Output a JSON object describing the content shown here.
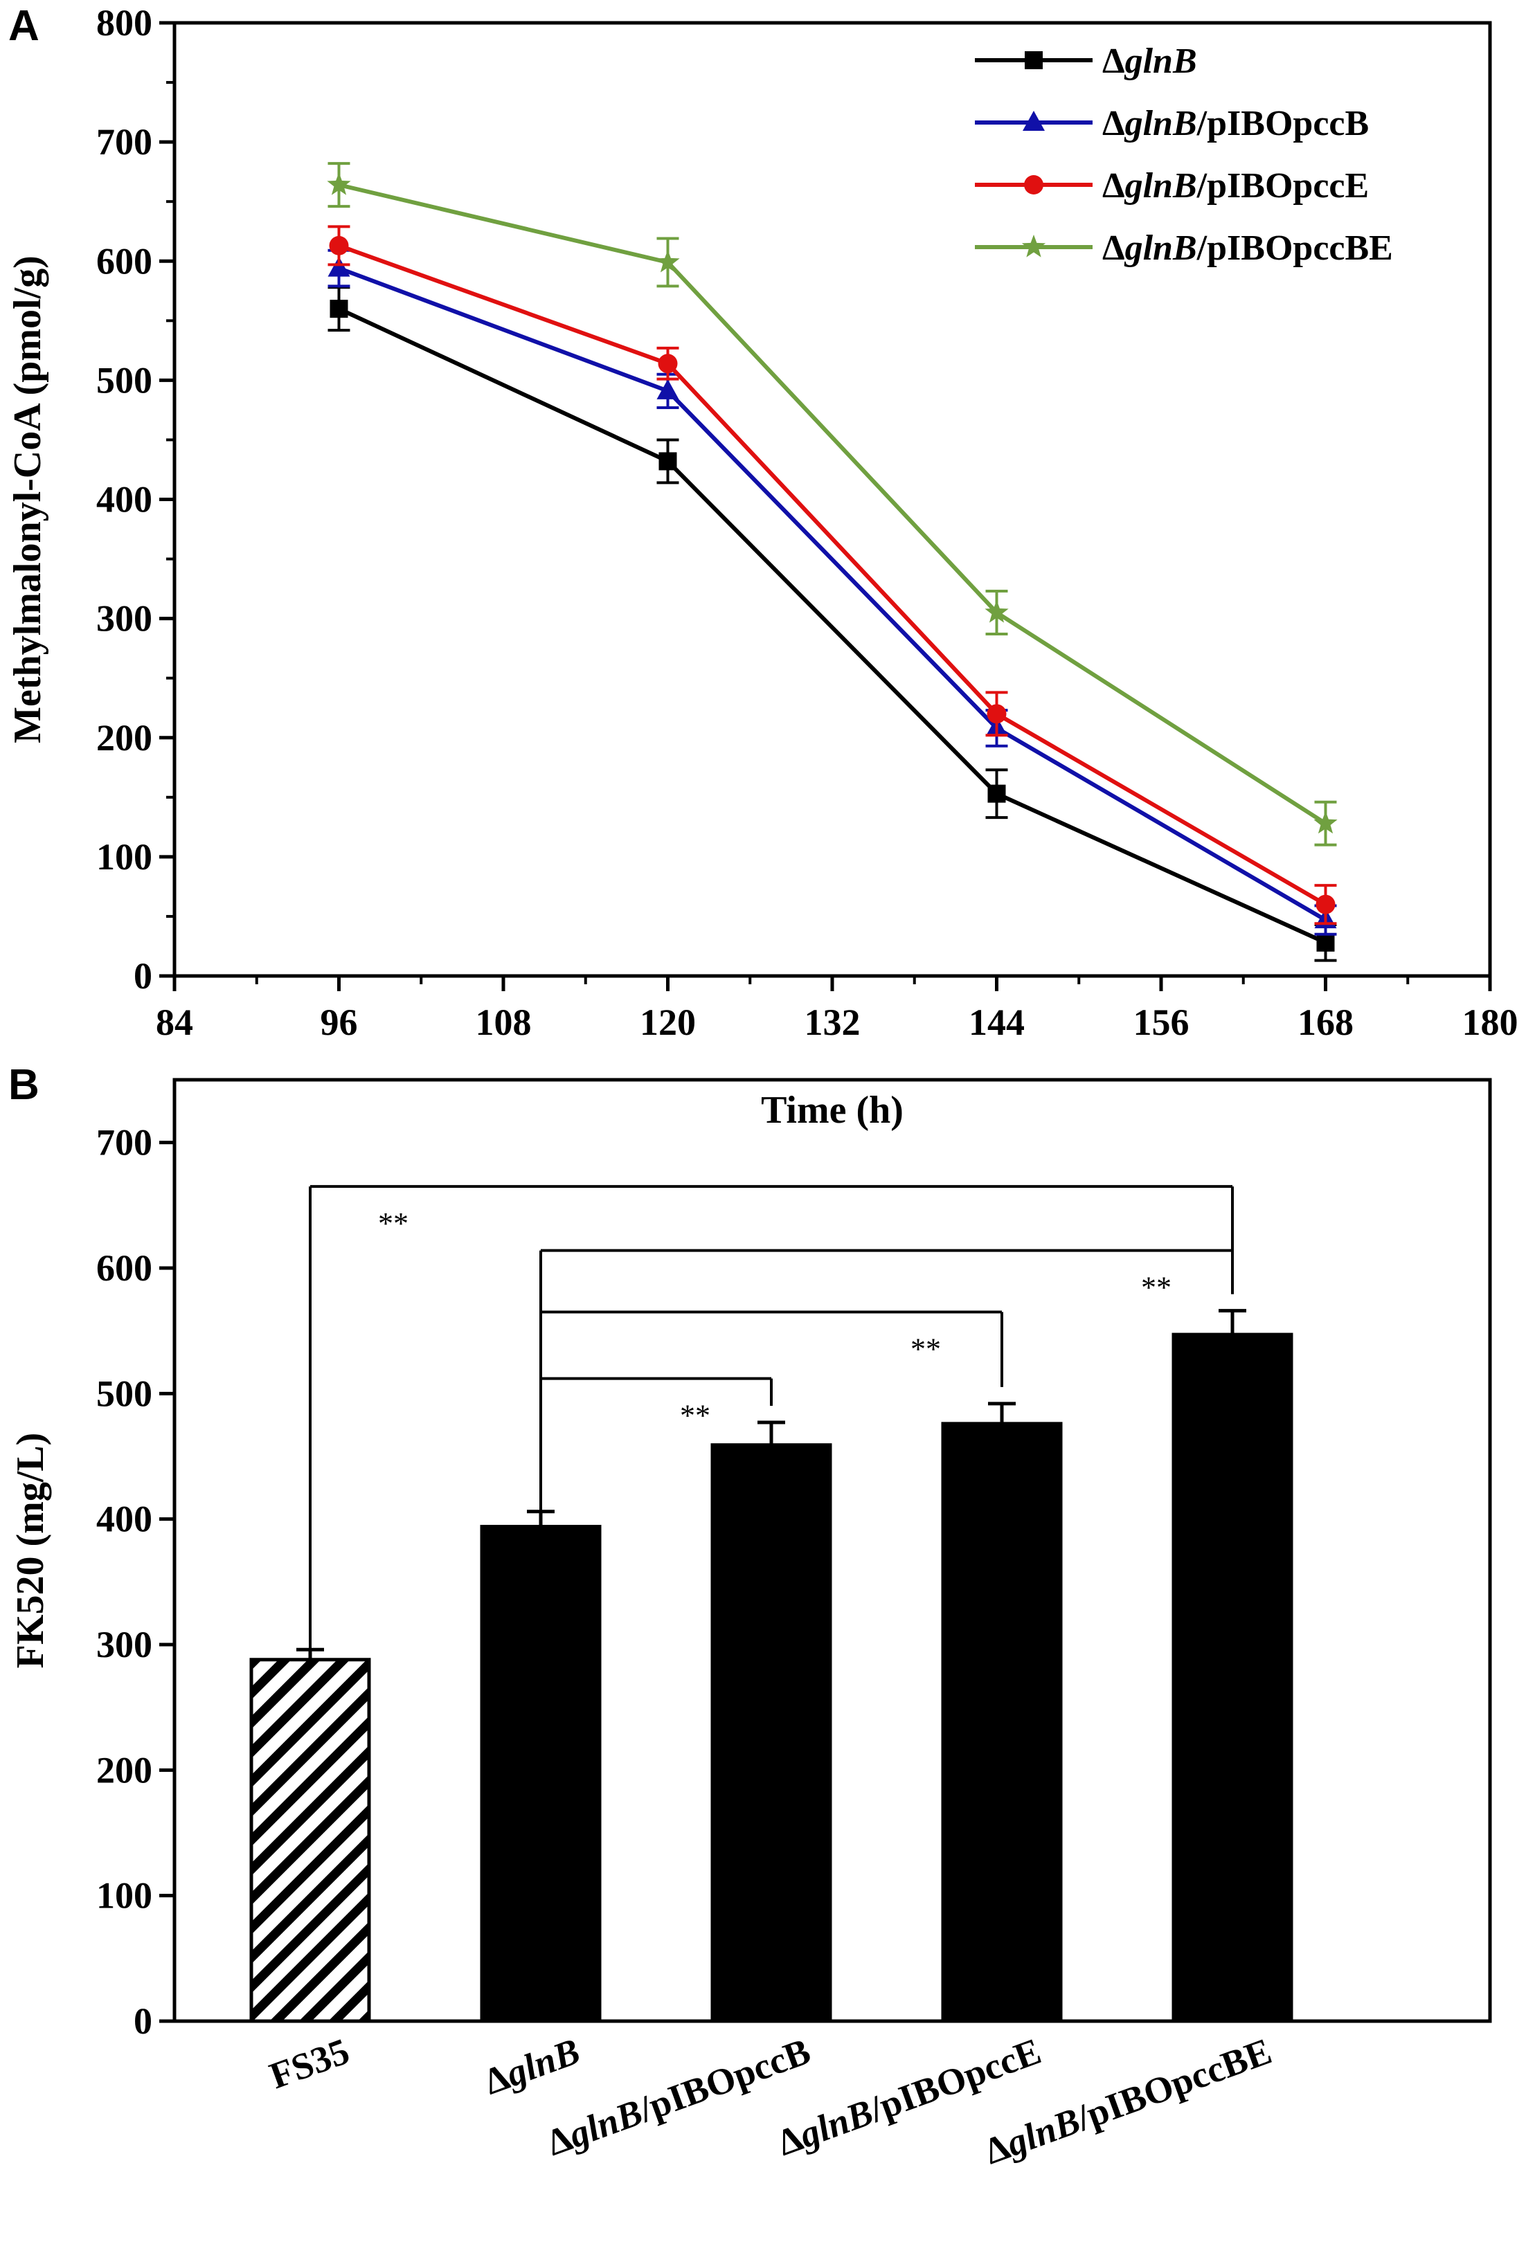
{
  "chart_data": [
    {
      "panel": "A",
      "type": "line",
      "xlabel": "Time (h)",
      "ylabel": "Methylmalonyl-CoA (pmol/g)",
      "xlim": [
        84,
        180
      ],
      "ylim": [
        0,
        800
      ],
      "xticks": [
        84,
        96,
        108,
        120,
        132,
        144,
        156,
        168,
        180
      ],
      "yticks": [
        0,
        100,
        200,
        300,
        400,
        500,
        600,
        700,
        800
      ],
      "x": [
        96,
        120,
        144,
        168
      ],
      "legend_position": "top-right",
      "series": [
        {
          "name": "ΔglnB",
          "name_parts": [
            "Δ",
            "glnB",
            ""
          ],
          "marker": "square",
          "color": "#000000",
          "values": [
            560,
            432,
            153,
            28
          ],
          "errors": [
            18,
            18,
            20,
            15
          ]
        },
        {
          "name": "ΔglnB/pIBOpccB",
          "name_parts": [
            "Δ",
            "glnB",
            "/pIBOpccB"
          ],
          "marker": "triangle",
          "color": "#1010a8",
          "values": [
            594,
            491,
            208,
            47
          ],
          "errors": [
            15,
            14,
            15,
            12
          ]
        },
        {
          "name": "ΔglnB/pIBOpccE",
          "name_parts": [
            "Δ",
            "glnB",
            "/pIBOpccE"
          ],
          "marker": "circle",
          "color": "#e01010",
          "values": [
            613,
            514,
            220,
            60
          ],
          "errors": [
            16,
            13,
            18,
            16
          ]
        },
        {
          "name": "ΔglnB/pIBOpccBE",
          "name_parts": [
            "Δ",
            "glnB",
            "/pIBOpccBE"
          ],
          "marker": "star",
          "color": "#70a040",
          "values": [
            664,
            599,
            305,
            128
          ],
          "errors": [
            18,
            20,
            18,
            18
          ]
        }
      ]
    },
    {
      "panel": "B",
      "type": "bar",
      "ylabel": "FK520 (mg/L)",
      "ylim": [
        0,
        750
      ],
      "yticks": [
        0,
        100,
        200,
        300,
        400,
        500,
        600,
        700
      ],
      "categories": [
        "FS35",
        "ΔglnB",
        "ΔglnB/pIBOpccB",
        "ΔglnB/pIBOpccE",
        "ΔglnB/pIBOpccBE"
      ],
      "category_parts": [
        [
          "",
          "FS35",
          ""
        ],
        [
          "Δ",
          "glnB",
          ""
        ],
        [
          "Δ",
          "glnB",
          "/pIBOpccB"
        ],
        [
          "Δ",
          "glnB",
          "/pIBOpccE"
        ],
        [
          "Δ",
          "glnB",
          "/pIBOpccBE"
        ]
      ],
      "values": [
        288,
        394,
        459,
        476,
        547
      ],
      "errors": [
        8,
        12,
        18,
        16,
        19
      ],
      "fills": [
        "hatched",
        "solid",
        "solid",
        "solid",
        "solid"
      ],
      "significance": [
        {
          "from": 0,
          "to": 4,
          "label": "**",
          "level": 665,
          "label_at": 0
        },
        {
          "from": 1,
          "to": 4,
          "label": "**",
          "level": 614,
          "label_at": 4
        },
        {
          "from": 1,
          "to": 3,
          "label": "**",
          "level": 565,
          "label_at": 3
        },
        {
          "from": 1,
          "to": 2,
          "label": "**",
          "level": 512,
          "label_at": 2
        }
      ]
    }
  ]
}
